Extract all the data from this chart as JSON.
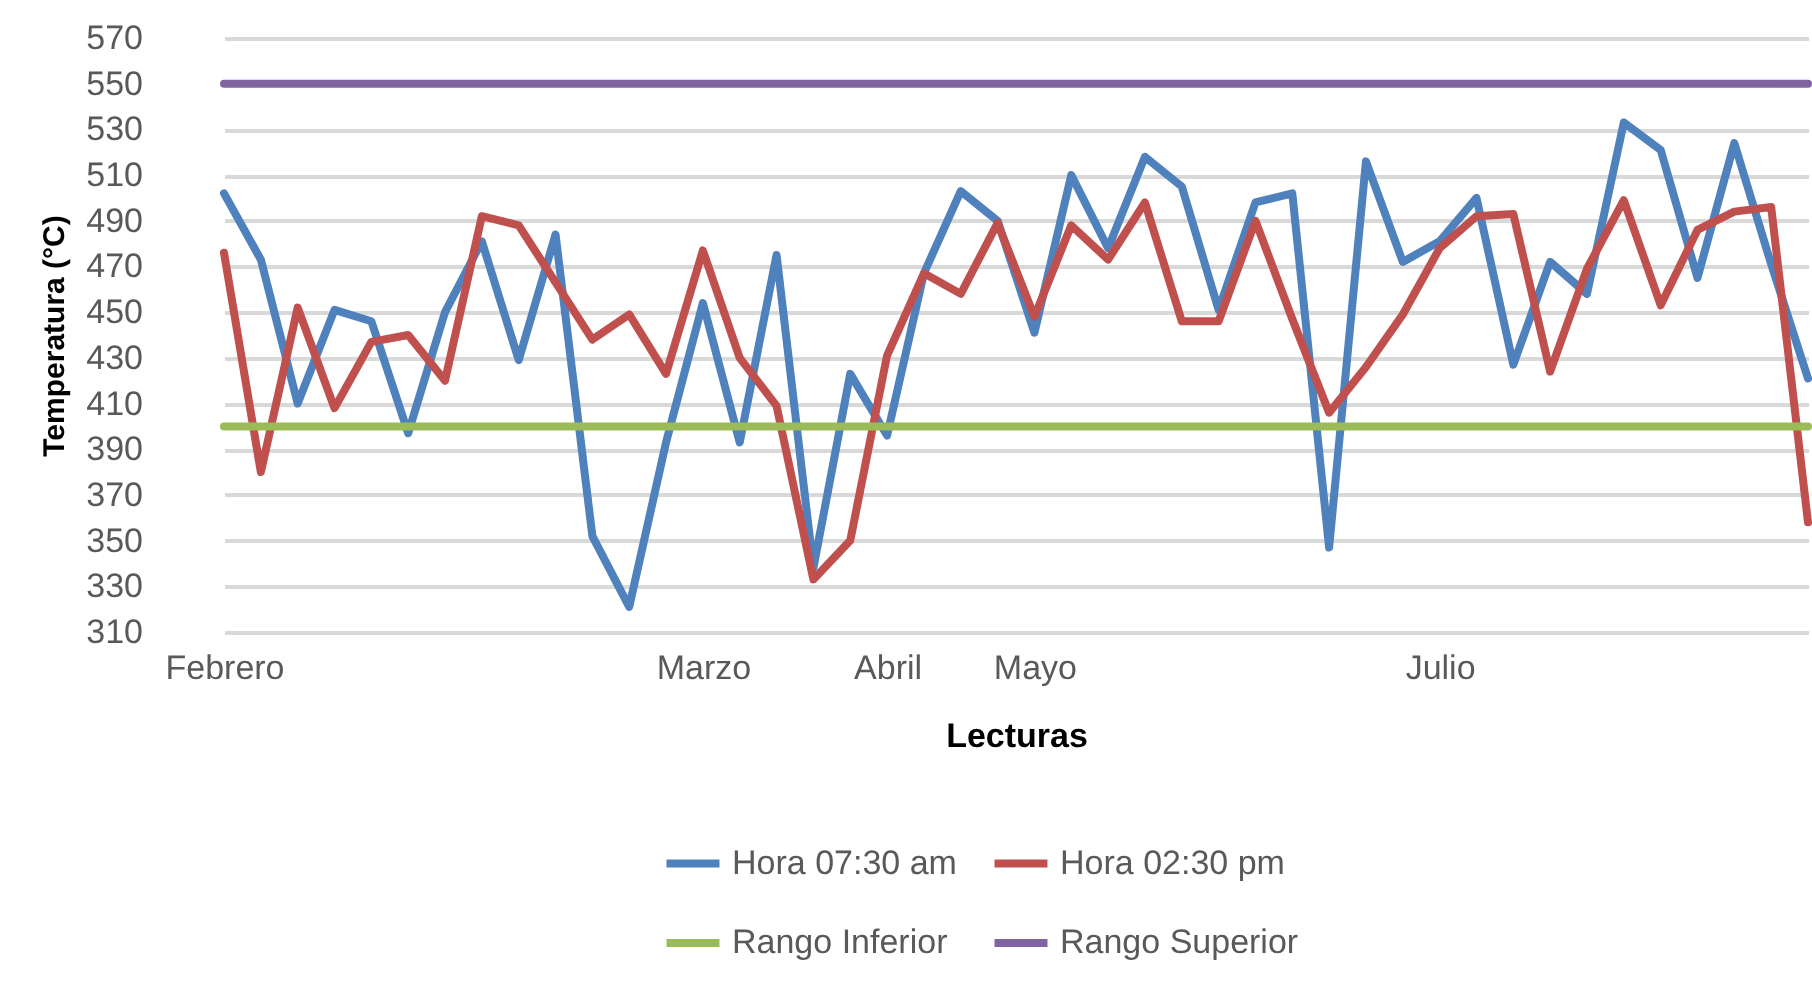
{
  "chart_data": {
    "type": "line",
    "xlabel": "Lecturas",
    "ylabel": "Temperatura (°C)",
    "categories": [
      "Febrero",
      null,
      null,
      null,
      null,
      null,
      null,
      null,
      null,
      null,
      null,
      null,
      null,
      "Marzo",
      null,
      null,
      null,
      null,
      "Abril",
      null,
      null,
      null,
      "Mayo",
      null,
      null,
      null,
      null,
      null,
      null,
      null,
      null,
      null,
      null,
      "Julio",
      null,
      null,
      null,
      null,
      null,
      null,
      null,
      null,
      null,
      null
    ],
    "ylim": [
      310,
      570
    ],
    "yticks": [
      310,
      330,
      350,
      370,
      390,
      410,
      430,
      450,
      470,
      490,
      510,
      530,
      550,
      570
    ],
    "grid": "y",
    "legend": "bottom",
    "series": [
      {
        "name": "Hora 07:30 am",
        "color": "#4f81bd",
        "values": [
          502,
          473,
          410,
          451,
          446,
          397,
          450,
          481,
          429,
          484,
          352,
          321,
          393,
          454,
          393,
          475,
          338,
          423,
          396,
          467,
          503,
          490,
          441,
          510,
          478,
          518,
          505,
          451,
          498,
          502,
          347,
          516,
          472,
          481,
          500,
          427,
          472,
          458,
          533,
          521,
          465,
          524,
          471,
          421
        ]
      },
      {
        "name": "Hora 02:30 pm",
        "color": "#c0504d",
        "values": [
          476,
          380,
          452,
          408,
          437,
          440,
          420,
          492,
          488,
          463,
          438,
          449,
          423,
          477,
          430,
          409,
          333,
          350,
          431,
          467,
          458,
          489,
          448,
          488,
          473,
          498,
          446,
          446,
          490,
          447,
          406,
          426,
          449,
          478,
          492,
          493,
          424,
          469,
          499,
          453,
          486,
          494,
          496,
          358
        ]
      },
      {
        "name": "Rango Inferior",
        "color": "#9bbb59",
        "values": [
          400,
          400,
          400,
          400,
          400,
          400,
          400,
          400,
          400,
          400,
          400,
          400,
          400,
          400,
          400,
          400,
          400,
          400,
          400,
          400,
          400,
          400,
          400,
          400,
          400,
          400,
          400,
          400,
          400,
          400,
          400,
          400,
          400,
          400,
          400,
          400,
          400,
          400,
          400,
          400,
          400,
          400,
          400,
          400
        ]
      },
      {
        "name": "Rango Superior",
        "color": "#8064a2",
        "values": [
          550,
          550,
          550,
          550,
          550,
          550,
          550,
          550,
          550,
          550,
          550,
          550,
          550,
          550,
          550,
          550,
          550,
          550,
          550,
          550,
          550,
          550,
          550,
          550,
          550,
          550,
          550,
          550,
          550,
          550,
          550,
          550,
          550,
          550,
          550,
          550,
          550,
          550,
          550,
          550,
          550,
          550,
          550,
          550
        ]
      }
    ]
  }
}
